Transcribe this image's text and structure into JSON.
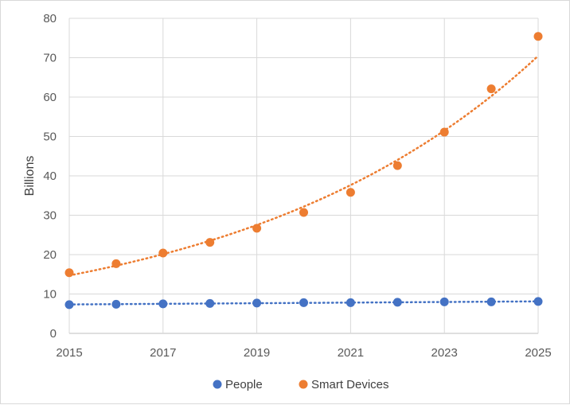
{
  "chart_data": {
    "type": "scatter",
    "title": "",
    "xlabel": "",
    "ylabel": "Billions",
    "xlim": [
      2015,
      2025
    ],
    "ylim": [
      0,
      80
    ],
    "x_ticks": [
      "2015",
      "2017",
      "2019",
      "2021",
      "2023",
      "2025"
    ],
    "y_ticks": [
      "0",
      "10",
      "20",
      "30",
      "40",
      "50",
      "60",
      "70",
      "80"
    ],
    "grid": true,
    "legend_position": "bottom",
    "x": [
      2015,
      2016,
      2017,
      2018,
      2019,
      2020,
      2021,
      2022,
      2023,
      2024,
      2025
    ],
    "series": [
      {
        "name": "People",
        "color": "#4472c4",
        "trendline": "linear",
        "values": [
          7.3,
          7.4,
          7.5,
          7.6,
          7.7,
          7.8,
          7.8,
          7.9,
          8.0,
          8.0,
          8.1
        ]
      },
      {
        "name": "Smart Devices",
        "color": "#ed7d31",
        "trendline": "exponential",
        "values": [
          15.4,
          17.7,
          20.4,
          23.1,
          26.7,
          30.7,
          35.8,
          42.6,
          51.1,
          62.1,
          75.4
        ]
      }
    ]
  }
}
